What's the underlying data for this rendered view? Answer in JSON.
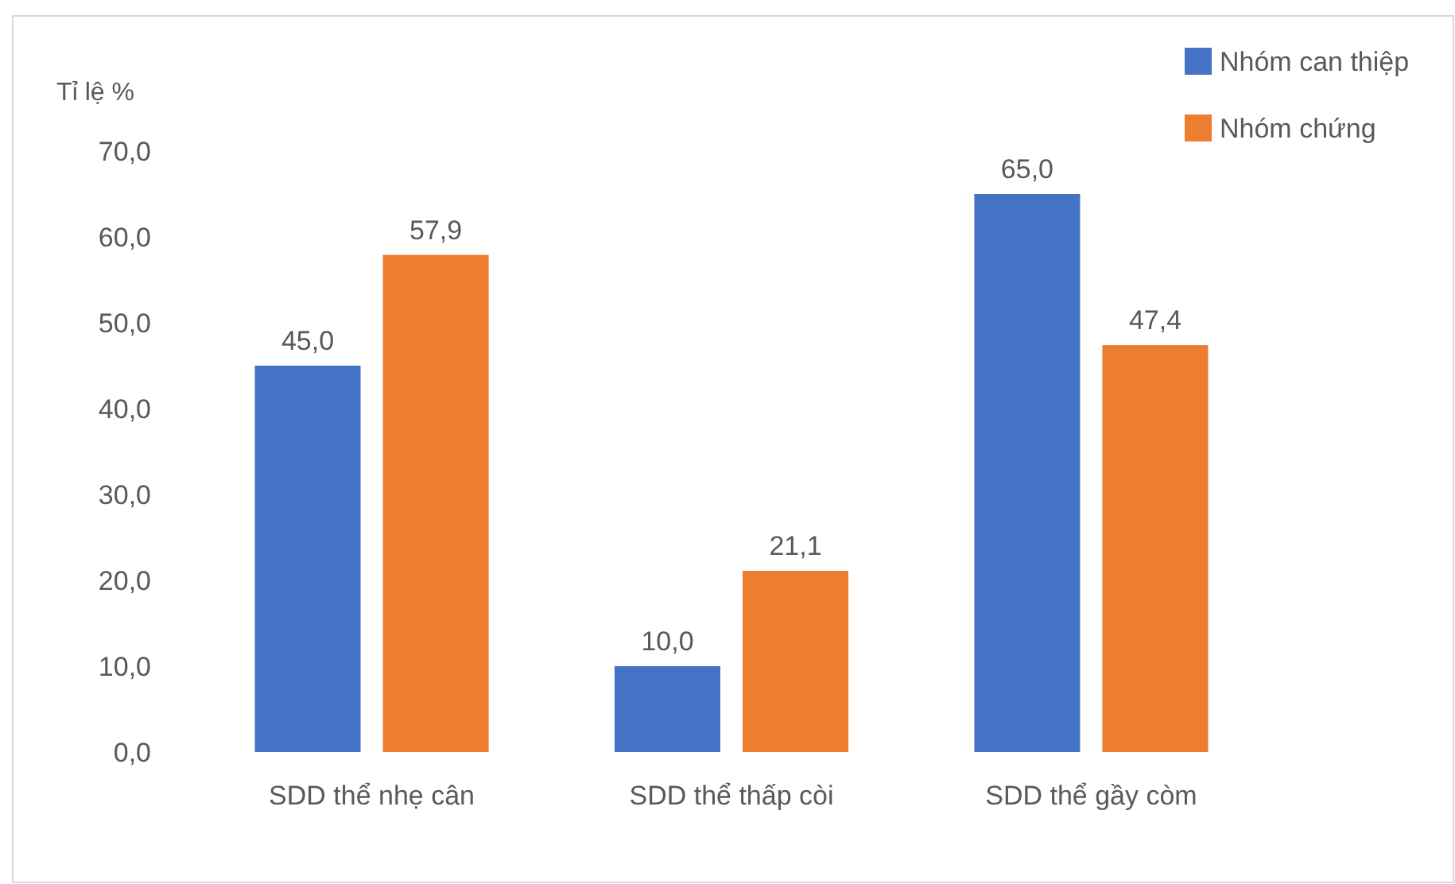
{
  "chart_data": {
    "type": "bar",
    "ylabel": "Tỉ lệ %",
    "categories": [
      "SDD thể nhẹ cân",
      "SDD thể thấp còi",
      "SDD thể gầy còm"
    ],
    "series": [
      {
        "name": "Nhóm can thiệp",
        "color": "#4472c4",
        "values": [
          45.0,
          10.0,
          65.0
        ],
        "value_labels": [
          "45,0",
          "10,0",
          "65,0"
        ]
      },
      {
        "name": "Nhóm chứng",
        "color": "#ed7d31",
        "values": [
          57.9,
          21.1,
          47.4
        ],
        "value_labels": [
          "57,9",
          "21,1",
          "47,4"
        ]
      }
    ],
    "ylim": [
      0,
      70
    ],
    "yticks": [
      {
        "value": 0,
        "label": "0,0"
      },
      {
        "value": 10,
        "label": "10,0"
      },
      {
        "value": 20,
        "label": "20,0"
      },
      {
        "value": 30,
        "label": "30,0"
      },
      {
        "value": 40,
        "label": "40,0"
      },
      {
        "value": 50,
        "label": "50,0"
      },
      {
        "value": 60,
        "label": "60,0"
      },
      {
        "value": 70,
        "label": "70,0"
      }
    ],
    "grid": false,
    "legend": "top right"
  }
}
